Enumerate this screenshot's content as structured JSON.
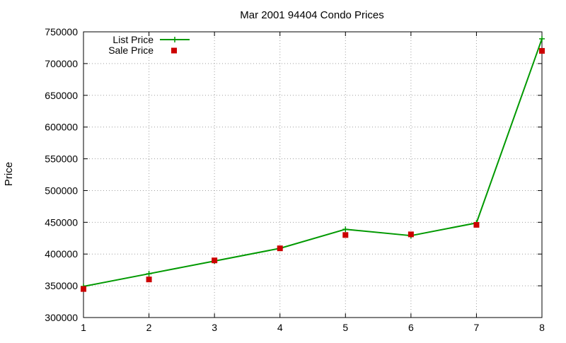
{
  "chart_data": {
    "type": "line",
    "title": "Mar 2001 94404 Condo Prices",
    "xlabel": "",
    "ylabel": "Price",
    "x": [
      1,
      2,
      3,
      4,
      5,
      6,
      7,
      8
    ],
    "xlim": [
      1,
      8
    ],
    "ylim": [
      300000,
      750000
    ],
    "x_ticks": [
      1,
      2,
      3,
      4,
      5,
      6,
      7,
      8
    ],
    "y_ticks": [
      300000,
      350000,
      400000,
      450000,
      500000,
      550000,
      600000,
      650000,
      700000,
      750000
    ],
    "grid": true,
    "legend_position": "top-left",
    "series": [
      {
        "name": "List Price",
        "style": "line-with-plus-markers",
        "color": "#009900",
        "values": [
          349000,
          369000,
          389000,
          409000,
          439000,
          429000,
          449000,
          739000
        ]
      },
      {
        "name": "Sale Price",
        "style": "square-markers",
        "color": "#cc0000",
        "values": [
          345000,
          360000,
          390000,
          409000,
          430000,
          431000,
          446000,
          720000
        ]
      }
    ]
  }
}
